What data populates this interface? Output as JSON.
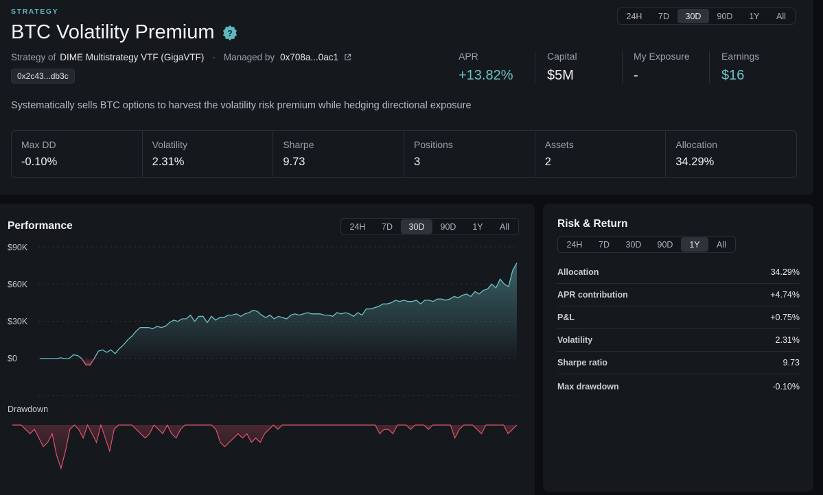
{
  "header": {
    "eyebrow": "STRATEGY",
    "title": "BTC Volatility Premium",
    "strategy_of_label": "Strategy of",
    "strategy_of_value": "DIME Multistrategy VTF (GigaVTF)",
    "managed_by_label": "Managed by",
    "managed_by_value": "0x708a...0ac1",
    "address_chip": "0x2c43...db3c",
    "description": "Systematically sells BTC options to harvest the volatility risk premium while hedging directional exposure",
    "timeframes": [
      "24H",
      "7D",
      "30D",
      "90D",
      "1Y",
      "All"
    ],
    "active_timeframe": "30D"
  },
  "stats": {
    "apr": {
      "label": "APR",
      "value": "+13.82%"
    },
    "capital": {
      "label": "Capital",
      "value": "$5M"
    },
    "exposure": {
      "label": "My Exposure",
      "value": "-"
    },
    "earnings": {
      "label": "Earnings",
      "value": "$16"
    }
  },
  "metrics": [
    {
      "label": "Max DD",
      "value": "-0.10%"
    },
    {
      "label": "Volatility",
      "value": "2.31%"
    },
    {
      "label": "Sharpe",
      "value": "9.73"
    },
    {
      "label": "Positions",
      "value": "3"
    },
    {
      "label": "Assets",
      "value": "2"
    },
    {
      "label": "Allocation",
      "value": "34.29%"
    }
  ],
  "performance": {
    "title": "Performance",
    "timeframes": [
      "24H",
      "7D",
      "30D",
      "90D",
      "1Y",
      "All"
    ],
    "active_timeframe": "30D",
    "drawdown_label": "Drawdown",
    "y_ticks": [
      "$90K",
      "$60K",
      "$30K",
      "$0"
    ]
  },
  "risk": {
    "title": "Risk & Return",
    "timeframes": [
      "24H",
      "7D",
      "30D",
      "90D",
      "1Y",
      "All"
    ],
    "active_timeframe": "1Y",
    "rows": [
      {
        "label": "Allocation",
        "value": "34.29%",
        "tone": "neutral"
      },
      {
        "label": "APR contribution",
        "value": "+4.74%",
        "tone": "positive"
      },
      {
        "label": "P&L",
        "value": "+0.75%",
        "tone": "positive"
      },
      {
        "label": "Volatility",
        "value": "2.31%",
        "tone": "neutral"
      },
      {
        "label": "Sharpe ratio",
        "value": "9.73",
        "tone": "neutral"
      },
      {
        "label": "Max drawdown",
        "value": "-0.10%",
        "tone": "negative"
      }
    ]
  },
  "chart_data": [
    {
      "type": "area",
      "ylim": [
        -10000,
        90000
      ],
      "y_ticks": [
        0,
        30000,
        60000,
        90000
      ],
      "series": [
        {
          "values": [
            0,
            0,
            0,
            0,
            0,
            600,
            0,
            0,
            3000,
            2500,
            0,
            -5000,
            -5200,
            0,
            6000,
            7000,
            5000,
            7000,
            4000,
            8000,
            11000,
            15000,
            18000,
            22000,
            25000,
            25000,
            25000,
            24000,
            26000,
            25000,
            26000,
            29000,
            31000,
            30000,
            32000,
            32000,
            35000,
            30000,
            34000,
            34000,
            29000,
            34000,
            31000,
            33000,
            33000,
            35000,
            35000,
            36000,
            34000,
            36000,
            37000,
            39000,
            38000,
            35000,
            33000,
            35000,
            32000,
            34000,
            33000,
            32000,
            35000,
            36000,
            35000,
            36000,
            37000,
            36000,
            36000,
            36000,
            35000,
            35000,
            34000,
            37000,
            36000,
            37000,
            36000,
            34000,
            37000,
            35000,
            40000,
            40000,
            41000,
            42000,
            44000,
            44000,
            45000,
            47000,
            46000,
            47000,
            46000,
            46000,
            47000,
            44000,
            47000,
            47000,
            46000,
            48000,
            48000,
            47000,
            48000,
            50000,
            49000,
            51000,
            52000,
            50000,
            54000,
            52000,
            55000,
            56000,
            60000,
            57000,
            64000,
            60000,
            58000,
            71000,
            77000
          ]
        }
      ]
    },
    {
      "type": "area",
      "series": [
        {
          "values": [
            0,
            0,
            0,
            -0.01,
            -0.02,
            -0.01,
            -0.03,
            -0.05,
            -0.04,
            -0.02,
            -0.07,
            -0.1,
            -0.06,
            -0.01,
            0,
            -0.01,
            -0.03,
            0,
            -0.02,
            -0.04,
            0,
            -0.03,
            -0.06,
            -0.01,
            0,
            0,
            0,
            0,
            -0.01,
            -0.02,
            -0.03,
            -0.02,
            0,
            -0.01,
            -0.02,
            0,
            -0.02,
            -0.03,
            -0.01,
            0,
            0,
            0,
            0,
            0,
            0,
            0,
            -0.01,
            -0.04,
            -0.05,
            -0.04,
            -0.03,
            -0.02,
            -0.03,
            -0.02,
            -0.04,
            -0.03,
            -0.04,
            -0.02,
            -0.01,
            0,
            -0.01,
            0,
            0,
            0,
            0,
            0,
            0,
            0,
            0,
            0,
            0,
            0,
            0,
            0,
            0,
            0,
            0,
            0,
            0,
            0,
            0,
            0,
            0,
            -0.02,
            -0.01,
            -0.01,
            -0.02,
            0,
            0,
            0,
            -0.01,
            0,
            0,
            0,
            -0.01,
            0,
            0,
            0,
            0,
            0,
            -0.03,
            -0.01,
            0,
            0,
            0,
            -0.01,
            -0.02,
            0,
            0,
            0,
            0,
            0,
            -0.02,
            -0.01,
            0
          ]
        }
      ]
    }
  ]
}
